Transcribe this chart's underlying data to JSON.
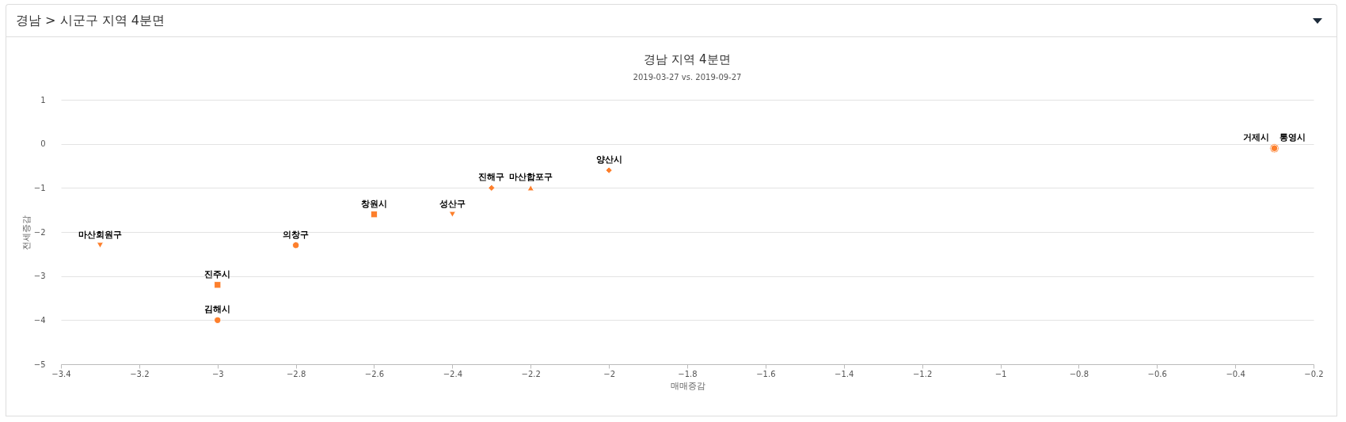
{
  "chart_data": {
    "type": "scatter",
    "title": "경남 지역 4분면",
    "subtitle": "2019-03-27 vs. 2019-09-27",
    "xlabel": "매매증감",
    "ylabel": "전세증감",
    "annotations": [
      "경남 > 시군구 지역 4분면"
    ],
    "xlim": [
      -3.4,
      -0.2
    ],
    "xticks": [
      -3.4,
      -3.2,
      -3,
      -2.8,
      -2.6,
      -2.4,
      -2.2,
      -2,
      -1.8,
      -1.6,
      -1.4,
      -1.2,
      -1,
      -0.8,
      -0.6,
      -0.4,
      -0.2
    ],
    "ylim": [
      -5,
      1
    ],
    "yticks": [
      -5,
      -4,
      -3,
      -2,
      -1,
      0,
      1
    ],
    "grid": "y",
    "series": [
      {
        "name": "마산회원구",
        "color": "#fd7f2c",
        "marker": "triangle-down",
        "x": [
          -3.3
        ],
        "values": [
          -2.3
        ]
      },
      {
        "name": "진주시",
        "color": "#fd7f2c",
        "marker": "square",
        "x": [
          -3.0
        ],
        "values": [
          -3.2
        ]
      },
      {
        "name": "김해시",
        "color": "#fd7f2c",
        "marker": "circle",
        "x": [
          -3.0
        ],
        "values": [
          -4.0
        ]
      },
      {
        "name": "의창구",
        "color": "#fd7f2c",
        "marker": "circle",
        "x": [
          -2.8
        ],
        "values": [
          -2.3
        ]
      },
      {
        "name": "창원시",
        "color": "#fd7f2c",
        "marker": "square",
        "x": [
          -2.6
        ],
        "values": [
          -1.6
        ]
      },
      {
        "name": "성산구",
        "color": "#fd7f2c",
        "marker": "triangle-down",
        "x": [
          -2.4
        ],
        "values": [
          -1.6
        ]
      },
      {
        "name": "진해구",
        "color": "#fd7f2c",
        "marker": "diamond",
        "x": [
          -2.3
        ],
        "values": [
          -1.0
        ]
      },
      {
        "name": "마산합포구",
        "color": "#fd7f2c",
        "marker": "triangle",
        "x": [
          -2.2
        ],
        "values": [
          -1.0
        ]
      },
      {
        "name": "양산시",
        "color": "#fd7f2c",
        "marker": "diamond",
        "x": [
          -2.0
        ],
        "values": [
          -0.6
        ]
      },
      {
        "name": "거제시",
        "color": "#fd7f2c",
        "marker": "circle",
        "x": [
          -0.3
        ],
        "values": [
          -0.1
        ]
      },
      {
        "name": "통영시",
        "color": "#fd7f2c",
        "marker": "circle",
        "x": [
          -0.3
        ],
        "values": [
          -0.1
        ]
      }
    ]
  }
}
